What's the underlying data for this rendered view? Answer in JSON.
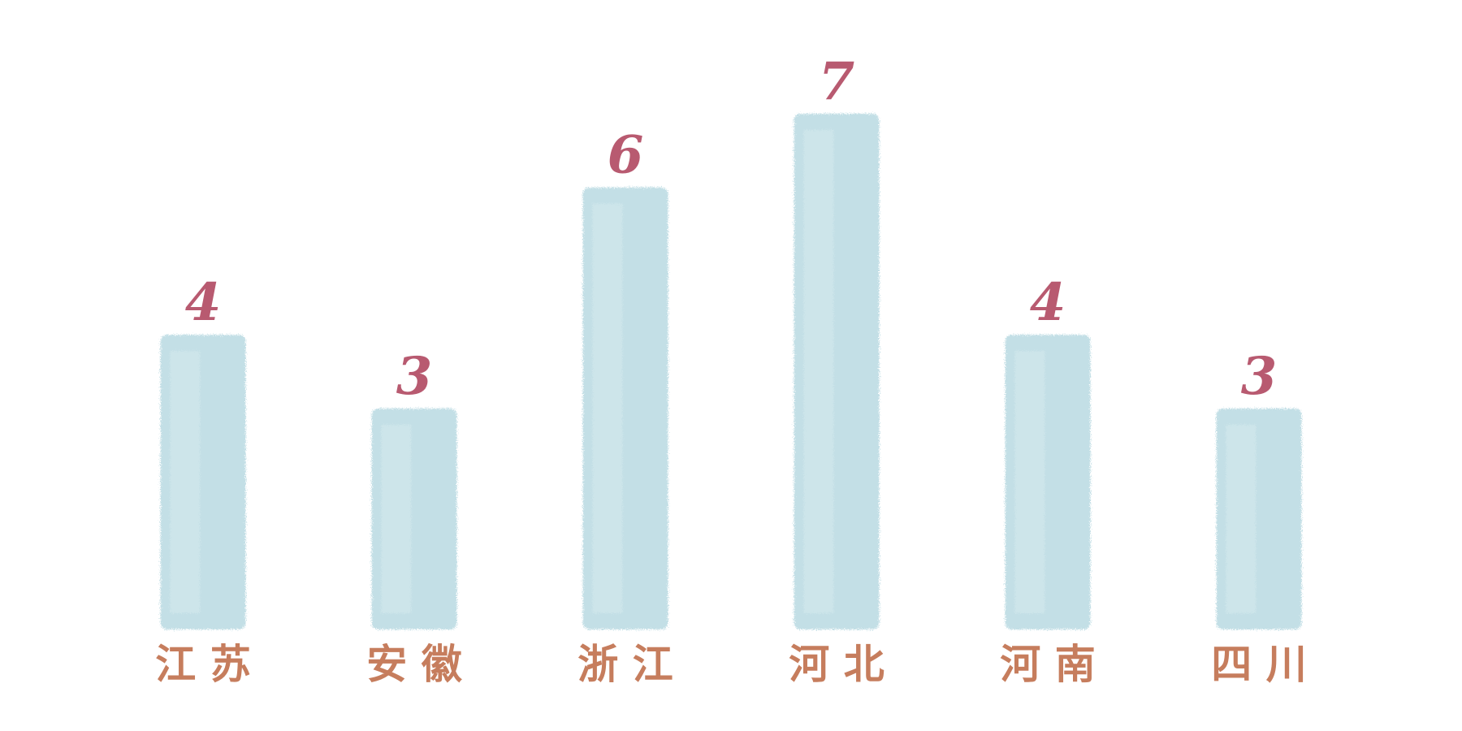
{
  "chart_data": {
    "type": "bar",
    "title": "",
    "xlabel": "",
    "ylabel": "",
    "ylim": [
      0,
      8
    ],
    "grid": false,
    "legend": "none",
    "categories": [
      "江 苏",
      "安 徽",
      "浙 江",
      "河 北",
      "河 南",
      "四 川"
    ],
    "values": [
      4,
      3,
      6,
      7,
      4,
      3
    ],
    "series": [
      {
        "values": [
          4,
          3,
          6,
          7,
          4,
          3
        ]
      }
    ]
  },
  "colors": {
    "bar_fill": "#c3dfe6",
    "bar_fill_light": "#d6eaee",
    "value_label": "#b85a70",
    "category_label": "#c67d5d",
    "background": "#ffffff"
  }
}
